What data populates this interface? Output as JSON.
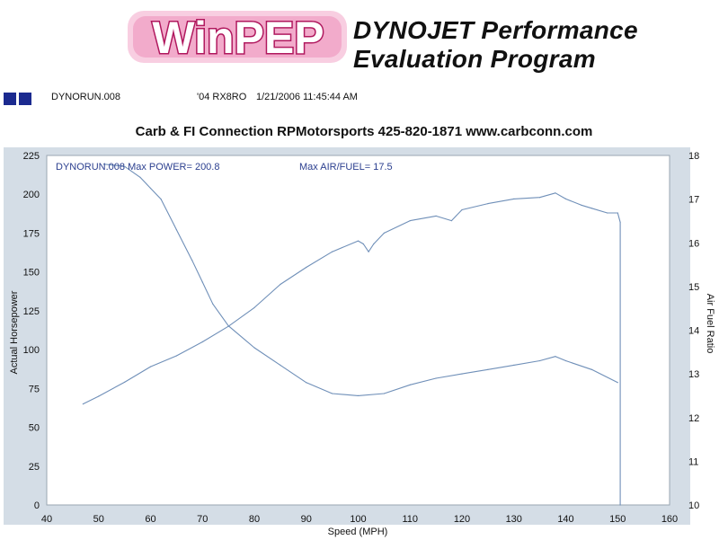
{
  "logo": {
    "text": "WinPEP",
    "colors": {
      "fill": "#ffffff",
      "outline": "#b0185e",
      "glow": "#e86aa4"
    }
  },
  "program_title": {
    "line1": "DYNOJET Performance",
    "line2": "Evaluation Program"
  },
  "run_info": {
    "file": "DYNORUN.008",
    "vehicle": "'04 RX8RO",
    "datetime": "1/21/2006 11:45:44 AM"
  },
  "shop_header": "Carb & FI Connection  RPMotorsports    425-820-1871  www.carbconn.com",
  "colors": {
    "plot_background": "#d4dde6",
    "plot_area": "#ffffff",
    "line": "#6f8fb8",
    "legend_text": "#2b3f8f",
    "square": "#1b2a8f"
  },
  "chart_data": {
    "type": "line",
    "xlabel": "Speed (MPH)",
    "ylabel": "Actual Horsepower",
    "y2label": "Air Fuel Ratio",
    "xlim": [
      40,
      160
    ],
    "ylim": [
      0,
      225
    ],
    "y2lim": [
      10,
      18
    ],
    "x_ticks": [
      40,
      50,
      60,
      70,
      80,
      90,
      100,
      110,
      120,
      130,
      140,
      150,
      160
    ],
    "y_ticks": [
      0,
      25,
      50,
      75,
      100,
      125,
      150,
      175,
      200,
      225
    ],
    "y2_ticks": [
      10,
      11,
      12,
      13,
      14,
      15,
      16,
      17,
      18
    ],
    "grid": false,
    "annotations": {
      "max_power": "DYNORUN.008  Max POWER= 200.8",
      "max_af": "Max AIR/FUEL= 17.5"
    },
    "series": [
      {
        "axis": "left",
        "x": [
          47,
          50,
          55,
          60,
          65,
          70,
          75,
          80,
          85,
          90,
          95,
          100,
          101,
          102,
          103,
          105,
          110,
          115,
          118,
          120,
          125,
          130,
          135,
          138,
          140,
          143,
          145,
          148,
          150,
          150.5,
          150.5
        ],
        "values": [
          65,
          70,
          79,
          89,
          96,
          105,
          115,
          127,
          142,
          153,
          163,
          170,
          168,
          163,
          168,
          175,
          183,
          186,
          183,
          190,
          194,
          197,
          198,
          200.8,
          197,
          193,
          191,
          188,
          188,
          182,
          0
        ]
      },
      {
        "axis": "right",
        "x": [
          51,
          55,
          58,
          60,
          62,
          65,
          68,
          70,
          72,
          75,
          80,
          85,
          90,
          95,
          100,
          105,
          110,
          115,
          120,
          125,
          130,
          135,
          138,
          140,
          145,
          150
        ],
        "values": [
          17.8,
          17.75,
          17.5,
          17.25,
          17.0,
          16.3,
          15.6,
          15.1,
          14.6,
          14.1,
          13.6,
          13.2,
          12.8,
          12.55,
          12.5,
          12.55,
          12.75,
          12.9,
          13.0,
          13.1,
          13.2,
          13.3,
          13.4,
          13.3,
          13.1,
          12.8
        ]
      }
    ]
  }
}
